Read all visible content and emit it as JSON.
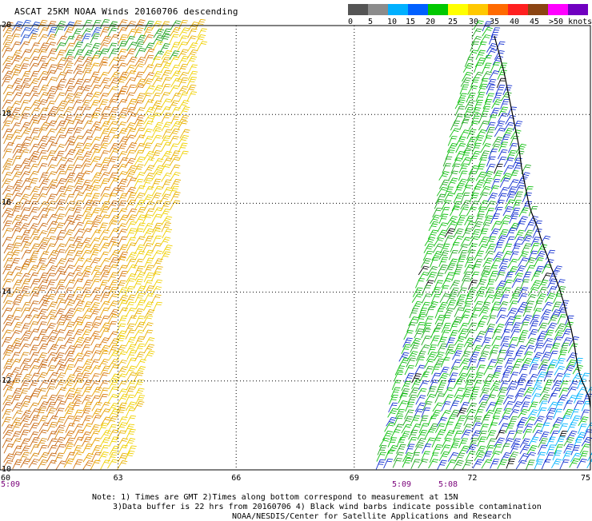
{
  "title": "ASCAT 25KM NOAA Winds 20160706 descending",
  "legend": {
    "colors": [
      "#555555",
      "#8c8c8c",
      "#00b0ff",
      "#0060ff",
      "#00c800",
      "#ffff00",
      "#ffc800",
      "#ff6a00",
      "#ff2020",
      "#8b4513",
      "#ff00ff",
      "#7000c0"
    ],
    "labels": [
      "0",
      "5",
      "10",
      "15",
      "20",
      "25",
      "30",
      "35",
      "40",
      "45",
      ">50 knots"
    ]
  },
  "map": {
    "lat_labels": [
      "20",
      "18",
      "16",
      "14",
      "12",
      "10"
    ],
    "lon_labels": [
      "60",
      "63",
      "66",
      "69",
      "72",
      "75"
    ],
    "pass_times": [
      "5:09",
      "5:09",
      "5:08"
    ],
    "lat_range": [
      10,
      20
    ],
    "lon_range": [
      60,
      75
    ]
  },
  "notes": {
    "line1": "Note: 1) Times are GMT 2)Times along bottom correspond to measurement at 15N",
    "line2": "3)Data buffer is 22 hrs from 20160706 4) Black wind barbs indicate possible contamination",
    "line3": "NOAA/NESDIS/Center for Satellite Applications and Research"
  }
}
